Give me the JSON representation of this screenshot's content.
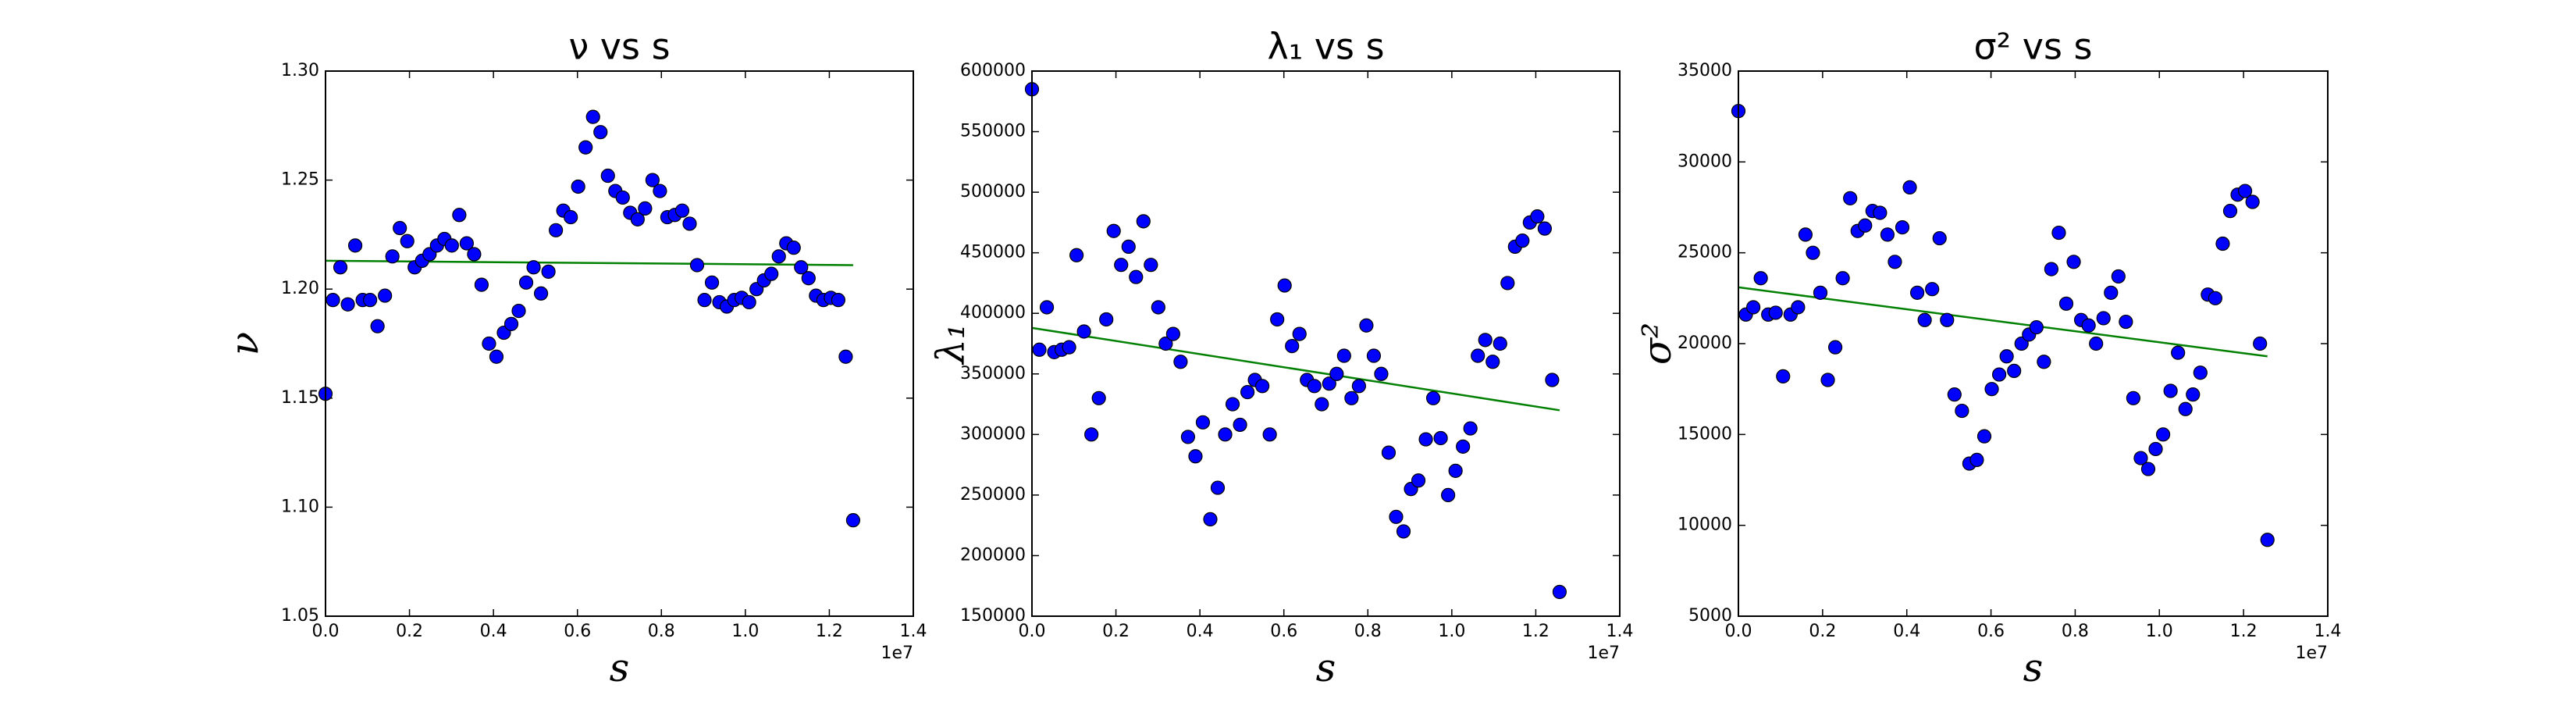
{
  "chart_data": [
    {
      "type": "scatter",
      "title": "ν vs s",
      "xlabel": "s",
      "ylabel": "ν",
      "x_offset_label": "1e7",
      "x": [
        0,
        177000,
        354000,
        531000,
        708000,
        885000,
        1062000,
        1239000,
        1416000,
        1593000,
        1770000,
        1947000,
        2124000,
        2301000,
        2478000,
        2655000,
        2832000,
        3009000,
        3186000,
        3363000,
        3540000,
        3717000,
        3894000,
        4071000,
        4248000,
        4425000,
        4602000,
        4779000,
        4956000,
        5133000,
        5310000,
        5487000,
        5664000,
        5841000,
        6018000,
        6195000,
        6372000,
        6549000,
        6726000,
        6903000,
        7080000,
        7257000,
        7434000,
        7611000,
        7788000,
        7965000,
        8142000,
        8319000,
        8496000,
        8673000,
        8850000,
        9027000,
        9204000,
        9381000,
        9558000,
        9735000,
        9912000,
        10089000,
        10266000,
        10443000,
        10620000,
        10797000,
        10974000,
        11151000,
        11328000,
        11505000,
        11682000,
        11859000,
        12036000,
        12213000,
        12390000,
        12567000
      ],
      "values": [
        1.152,
        1.195,
        1.21,
        1.193,
        1.22,
        1.195,
        1.195,
        1.183,
        1.197,
        1.215,
        1.228,
        1.222,
        1.21,
        1.213,
        1.216,
        1.22,
        1.223,
        1.22,
        1.234,
        1.221,
        1.216,
        1.202,
        1.175,
        1.169,
        1.18,
        1.184,
        1.19,
        1.203,
        1.21,
        1.198,
        1.208,
        1.227,
        1.236,
        1.233,
        1.247,
        1.265,
        1.279,
        1.272,
        1.252,
        1.245,
        1.242,
        1.235,
        1.232,
        1.237,
        1.25,
        1.245,
        1.233,
        1.234,
        1.236,
        1.23,
        1.211,
        1.195,
        1.203,
        1.194,
        1.192,
        1.195,
        1.196,
        1.194,
        1.2,
        1.204,
        1.207,
        1.215,
        1.221,
        1.219,
        1.21,
        1.205,
        1.197,
        1.195,
        1.196,
        1.195,
        1.169,
        1.094
      ],
      "color": "#0000ff",
      "fit": {
        "x": [
          0,
          12567000
        ],
        "values": [
          1.213,
          1.211
        ],
        "color": "#008000"
      },
      "xlim": [
        0,
        14000000
      ],
      "ylim": [
        1.05,
        1.3
      ],
      "xticks": [
        {
          "value": 0,
          "label": "0.0"
        },
        {
          "value": 2000000,
          "label": "0.2"
        },
        {
          "value": 4000000,
          "label": "0.4"
        },
        {
          "value": 6000000,
          "label": "0.6"
        },
        {
          "value": 8000000,
          "label": "0.8"
        },
        {
          "value": 10000000,
          "label": "1.0"
        },
        {
          "value": 12000000,
          "label": "1.2"
        },
        {
          "value": 14000000,
          "label": "1.4"
        }
      ],
      "yticks": [
        1.05,
        {
          "value": 1.1,
          "label": "1.10"
        },
        1.15,
        {
          "value": 1.2,
          "label": "1.20"
        },
        1.25,
        {
          "value": 1.3,
          "label": "1.30"
        }
      ]
    },
    {
      "type": "scatter",
      "title": "λ₁ vs s",
      "xlabel": "s",
      "ylabel": "λ₁",
      "x_offset_label": "1e7",
      "x": [
        0,
        177000,
        354000,
        531000,
        708000,
        885000,
        1062000,
        1239000,
        1416000,
        1593000,
        1770000,
        1947000,
        2124000,
        2301000,
        2478000,
        2655000,
        2832000,
        3009000,
        3186000,
        3363000,
        3540000,
        3717000,
        3894000,
        4071000,
        4248000,
        4425000,
        4602000,
        4779000,
        4956000,
        5133000,
        5310000,
        5487000,
        5664000,
        5841000,
        6018000,
        6195000,
        6372000,
        6549000,
        6726000,
        6903000,
        7080000,
        7257000,
        7434000,
        7611000,
        7788000,
        7965000,
        8142000,
        8319000,
        8496000,
        8673000,
        8850000,
        9027000,
        9204000,
        9381000,
        9558000,
        9735000,
        9912000,
        10089000,
        10266000,
        10443000,
        10620000,
        10797000,
        10974000,
        11151000,
        11328000,
        11505000,
        11682000,
        11859000,
        12036000,
        12213000,
        12390000,
        12567000
      ],
      "values": [
        585000,
        370000,
        405000,
        368000,
        370000,
        372000,
        448000,
        385000,
        300000,
        330000,
        395000,
        468000,
        440000,
        455000,
        430000,
        476000,
        440000,
        405000,
        375000,
        383000,
        360000,
        298000,
        282000,
        310000,
        230000,
        256000,
        300000,
        325000,
        308000,
        335000,
        345000,
        340000,
        300000,
        395000,
        423000,
        373000,
        383000,
        345000,
        340000,
        325000,
        342000,
        350000,
        365000,
        330000,
        340000,
        390000,
        365000,
        350000,
        285000,
        232000,
        220000,
        255000,
        262000,
        296000,
        330000,
        297000,
        250000,
        270000,
        290000,
        305000,
        365000,
        378000,
        360000,
        375000,
        425000,
        455000,
        460000,
        475000,
        480000,
        470000,
        345000,
        170000
      ],
      "color": "#0000ff",
      "fit": {
        "x": [
          0,
          12567000
        ],
        "values": [
          388000,
          320000
        ],
        "color": "#008000"
      },
      "xlim": [
        0,
        14000000
      ],
      "ylim": [
        150000,
        600000
      ],
      "xticks": [
        {
          "value": 0,
          "label": "0.0"
        },
        {
          "value": 2000000,
          "label": "0.2"
        },
        {
          "value": 4000000,
          "label": "0.4"
        },
        {
          "value": 6000000,
          "label": "0.6"
        },
        {
          "value": 8000000,
          "label": "0.8"
        },
        {
          "value": 10000000,
          "label": "1.0"
        },
        {
          "value": 12000000,
          "label": "1.2"
        },
        {
          "value": 14000000,
          "label": "1.4"
        }
      ],
      "yticks": [
        150000,
        200000,
        250000,
        300000,
        350000,
        400000,
        450000,
        500000,
        550000,
        600000
      ]
    },
    {
      "type": "scatter",
      "title": "σ² vs s",
      "xlabel": "s",
      "ylabel": "σ²",
      "x_offset_label": "1e7",
      "x": [
        0,
        177000,
        354000,
        531000,
        708000,
        885000,
        1062000,
        1239000,
        1416000,
        1593000,
        1770000,
        1947000,
        2124000,
        2301000,
        2478000,
        2655000,
        2832000,
        3009000,
        3186000,
        3363000,
        3540000,
        3717000,
        3894000,
        4071000,
        4248000,
        4425000,
        4602000,
        4779000,
        4956000,
        5133000,
        5310000,
        5487000,
        5664000,
        5841000,
        6018000,
        6195000,
        6372000,
        6549000,
        6726000,
        6903000,
        7080000,
        7257000,
        7434000,
        7611000,
        7788000,
        7965000,
        8142000,
        8319000,
        8496000,
        8673000,
        8850000,
        9027000,
        9204000,
        9381000,
        9558000,
        9735000,
        9912000,
        10089000,
        10266000,
        10443000,
        10620000,
        10797000,
        10974000,
        11151000,
        11328000,
        11505000,
        11682000,
        11859000,
        12036000,
        12213000,
        12390000,
        12567000
      ],
      "values": [
        32800,
        21600,
        22000,
        23600,
        21600,
        21700,
        18200,
        21600,
        22000,
        26000,
        25000,
        22800,
        18000,
        19800,
        23600,
        28000,
        26200,
        26500,
        27300,
        27200,
        26000,
        24500,
        26400,
        28600,
        22800,
        21300,
        23000,
        25800,
        21300,
        17200,
        16300,
        13400,
        13600,
        14900,
        17500,
        18300,
        19300,
        18500,
        20000,
        20500,
        20900,
        19000,
        24100,
        26100,
        22200,
        24500,
        21300,
        21000,
        20000,
        21400,
        22800,
        23700,
        21200,
        17000,
        13700,
        13100,
        14200,
        15000,
        17400,
        19500,
        16400,
        17200,
        18400,
        22700,
        22500,
        25500,
        27300,
        28200,
        28400,
        27800,
        20000,
        9200
      ],
      "color": "#0000ff",
      "fit": {
        "x": [
          0,
          12567000
        ],
        "values": [
          23100,
          19300
        ],
        "color": "#008000"
      },
      "xlim": [
        0,
        14000000
      ],
      "ylim": [
        5000,
        35000
      ],
      "xticks": [
        {
          "value": 0,
          "label": "0.0"
        },
        {
          "value": 2000000,
          "label": "0.2"
        },
        {
          "value": 4000000,
          "label": "0.4"
        },
        {
          "value": 6000000,
          "label": "0.6"
        },
        {
          "value": 8000000,
          "label": "0.8"
        },
        {
          "value": 10000000,
          "label": "1.0"
        },
        {
          "value": 12000000,
          "label": "1.2"
        },
        {
          "value": 14000000,
          "label": "1.4"
        }
      ],
      "yticks": [
        5000,
        10000,
        15000,
        20000,
        25000,
        30000,
        35000
      ]
    }
  ]
}
